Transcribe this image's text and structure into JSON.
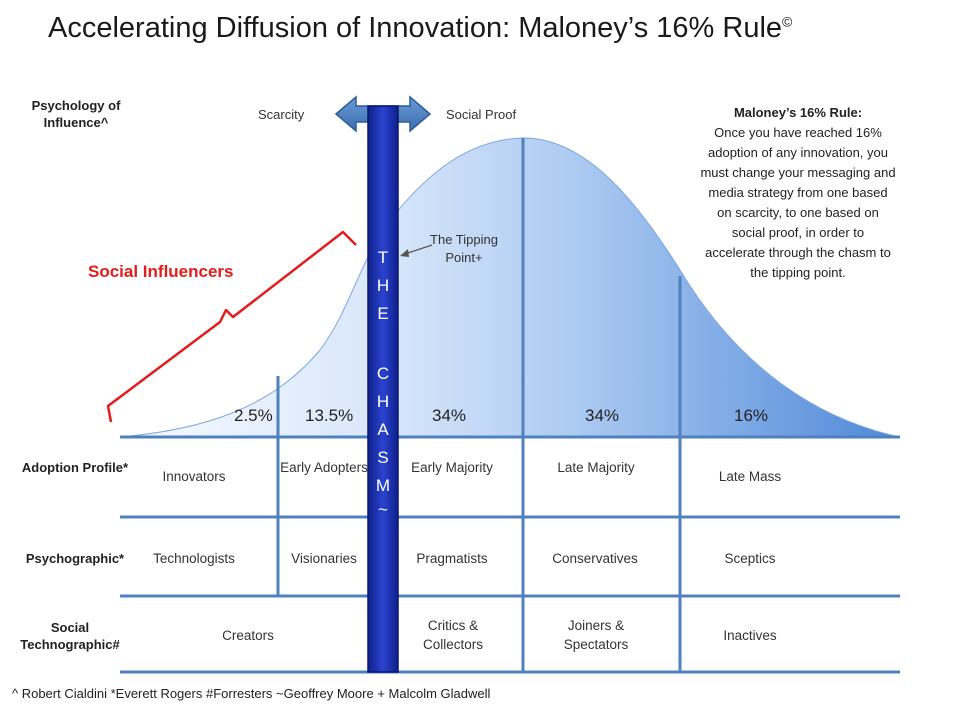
{
  "title": "Accelerating Diffusion of Innovation: Maloney’s 16% Rule",
  "title_mark": "©",
  "influence": {
    "row_label": "Psychology of Influence^",
    "left": "Scarcity",
    "right": "Social Proof"
  },
  "chasm_letters": [
    "T",
    "H",
    "E",
    "",
    "C",
    "H",
    "A",
    "S",
    "M",
    "~"
  ],
  "tipping_point": "The Tipping Point+",
  "social_influencers": "Social Influencers",
  "rule_box": {
    "heading": "Maloney’s 16% Rule:",
    "lines": [
      "Once you have reached 16%",
      "adoption of any innovation, you",
      "must change your messaging and",
      "media strategy from one based",
      "on scarcity, to one based on",
      "social proof, in order to",
      "accelerate through the chasm to",
      "the tipping point."
    ]
  },
  "percentages": [
    "2.5%",
    "13.5%",
    "34%",
    "34%",
    "16%"
  ],
  "rows": [
    {
      "label": "Adoption Profile*",
      "cells": [
        "Innovators",
        "Early Adopters",
        "Early Majority",
        "Late Majority",
        "Late Mass"
      ]
    },
    {
      "label": "Psychographic*",
      "cells": [
        "Technologists",
        "Visionaries",
        "Pragmatists",
        "Conservatives",
        "Sceptics"
      ]
    },
    {
      "label": "Social Technographic#",
      "cells": [
        "Creators",
        "Critics & Collectors",
        "Joiners & Spectators",
        "Inactives"
      ]
    }
  ],
  "footnote": "^ Robert Cialdini *Everett Rogers  #Forresters ~Geoffrey Moore + Malcolm Gladwell",
  "colors": {
    "chasm": "#1a2fb0",
    "curve_light": "#e6effc",
    "curve_dark": "#5a94e0",
    "grid_line": "#4f81bd",
    "bracket": "#e31c1c",
    "arrow": "#4a7ebb"
  }
}
